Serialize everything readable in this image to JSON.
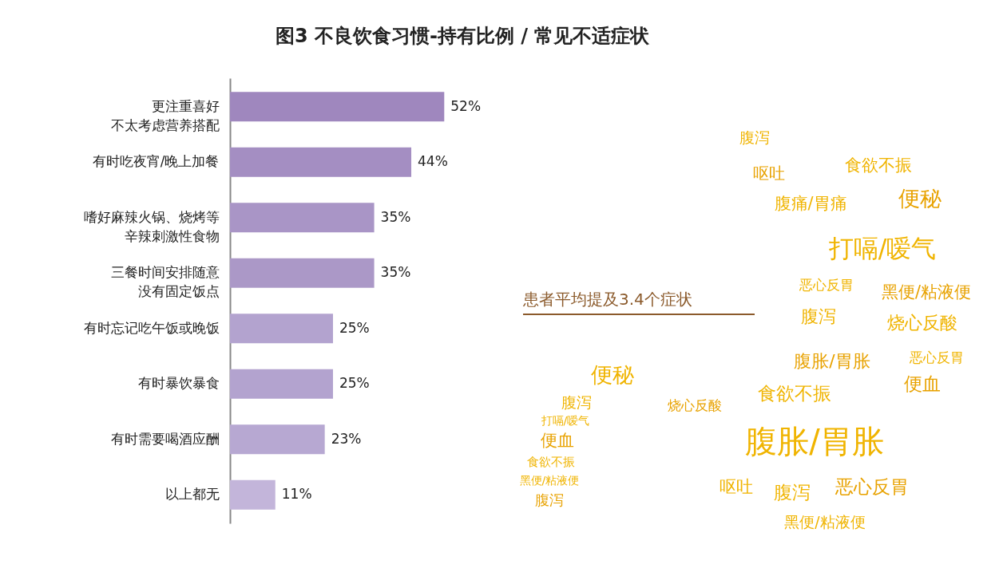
{
  "chart_data": [
    {
      "type": "bar",
      "orientation": "horizontal",
      "title": "图3 不良饮食习惯-持有比例 / 常见不适症状",
      "categories": [
        "更注重喜好不太考虑营养搭配",
        "有时吃夜宵/晚上加餐",
        "嗜好麻辣火锅、烧烤等辛辣刺激性食物",
        "三餐时间安排随意没有固定饭点",
        "有时忘记吃午饭或晚饭",
        "有时暴饮暴食",
        "有时需要喝酒应酬",
        "以上都无"
      ],
      "values": [
        52,
        44,
        35,
        35,
        25,
        25,
        23,
        11
      ],
      "value_labels": [
        "52%",
        "44%",
        "35%",
        "35%",
        "25%",
        "25%",
        "23%",
        "11%"
      ],
      "colors": [
        "#9f87be",
        "#a48ec2",
        "#a995c6",
        "#ab98c7",
        "#b3a3cf",
        "#b3a3cf",
        "#b7a8d2",
        "#c3b5da"
      ]
    },
    {
      "type": "other",
      "title": "患者平均提及3.4个症状",
      "annotations": [
        "腹泻",
        "呕吐",
        "食欲不振",
        "腹痛/胃痛",
        "便秘",
        "打嗝/嗳气",
        "恶心反胃",
        "黑便/粘液便",
        "腹泻",
        "烧心反酸",
        "腹胀/胃胀",
        "恶心反胃",
        "便秘",
        "便血",
        "食欲不振",
        "腹泻",
        "烧心反酸",
        "打嗝/嗳气",
        "腹胀/胃胀",
        "便血",
        "食欲不振",
        "黑便/粘液便",
        "腹泻",
        "呕吐",
        "腹泻",
        "恶心反胃",
        "黑便/粘液便"
      ]
    }
  ]
}
